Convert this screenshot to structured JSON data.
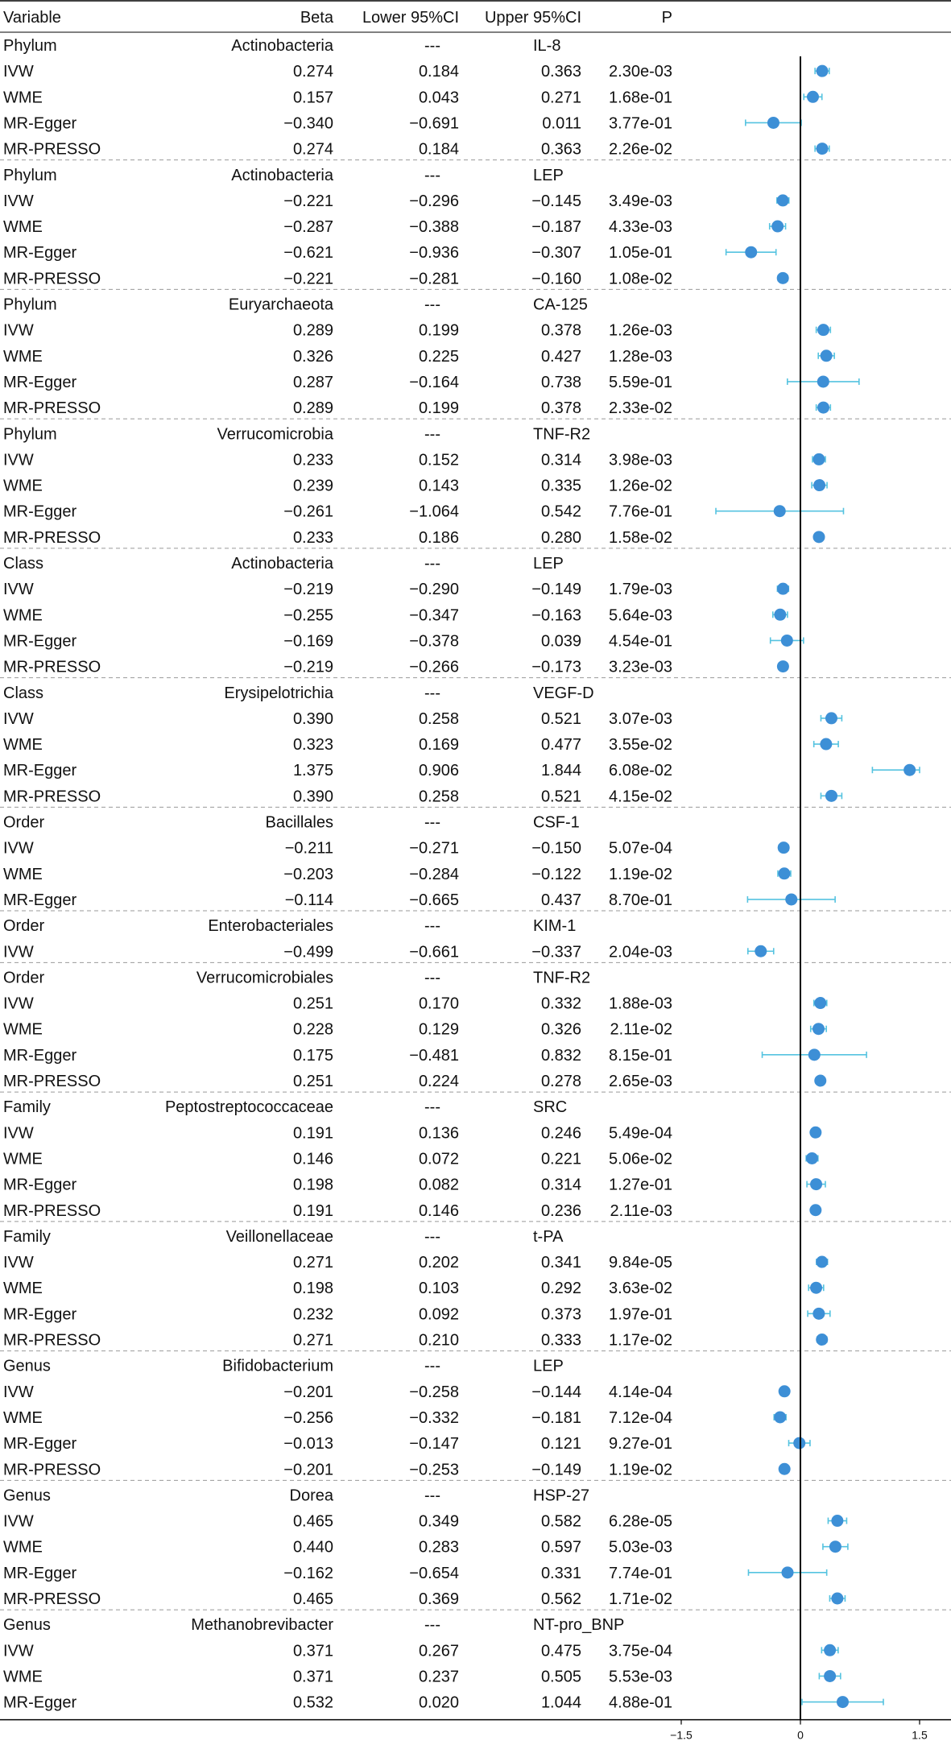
{
  "header": {
    "variable": "Variable",
    "beta": "Beta",
    "lower": "Lower 95%CI",
    "upper": "Upper 95%CI",
    "p": "P"
  },
  "group_dash": "---",
  "colors": {
    "point": "#3d8fd6",
    "whisker": "#55c3e0",
    "axis": "#000000",
    "separator": "#999999"
  },
  "chart_data": {
    "type": "forest",
    "title": "",
    "xlim": [
      -1.5,
      1.5
    ],
    "xticks": [
      -1.5,
      0,
      1.5
    ],
    "xtick_labels": [
      "-1.5",
      "0",
      "1.5"
    ],
    "reference_line": 0,
    "groups": [
      {
        "level": "Phylum",
        "taxon": "Actinobacteria",
        "outcome": "IL-8",
        "rows": [
          {
            "method": "IVW",
            "beta": "0.274",
            "lower": "0.184",
            "upper": "0.363",
            "p": "2.30e-03"
          },
          {
            "method": "WME",
            "beta": "0.157",
            "lower": "0.043",
            "upper": "0.271",
            "p": "1.68e-01"
          },
          {
            "method": "MR-Egger",
            "beta": "-0.340",
            "lower": "-0.691",
            "upper": "0.011",
            "p": "3.77e-01"
          },
          {
            "method": "MR-PRESSO",
            "beta": "0.274",
            "lower": "0.184",
            "upper": "0.363",
            "p": "2.26e-02"
          }
        ]
      },
      {
        "level": "Phylum",
        "taxon": "Actinobacteria",
        "outcome": "LEP",
        "rows": [
          {
            "method": "IVW",
            "beta": "-0.221",
            "lower": "-0.296",
            "upper": "-0.145",
            "p": "3.49e-03"
          },
          {
            "method": "WME",
            "beta": "-0.287",
            "lower": "-0.388",
            "upper": "-0.187",
            "p": "4.33e-03"
          },
          {
            "method": "MR-Egger",
            "beta": "-0.621",
            "lower": "-0.936",
            "upper": "-0.307",
            "p": "1.05e-01"
          },
          {
            "method": "MR-PRESSO",
            "beta": "-0.221",
            "lower": "-0.281",
            "upper": "-0.160",
            "p": "1.08e-02"
          }
        ]
      },
      {
        "level": "Phylum",
        "taxon": "Euryarchaeota",
        "outcome": "CA-125",
        "rows": [
          {
            "method": "IVW",
            "beta": "0.289",
            "lower": "0.199",
            "upper": "0.378",
            "p": "1.26e-03"
          },
          {
            "method": "WME",
            "beta": "0.326",
            "lower": "0.225",
            "upper": "0.427",
            "p": "1.28e-03"
          },
          {
            "method": "MR-Egger",
            "beta": "0.287",
            "lower": "-0.164",
            "upper": "0.738",
            "p": "5.59e-01"
          },
          {
            "method": "MR-PRESSO",
            "beta": "0.289",
            "lower": "0.199",
            "upper": "0.378",
            "p": "2.33e-02"
          }
        ]
      },
      {
        "level": "Phylum",
        "taxon": "Verrucomicrobia",
        "outcome": "TNF-R2",
        "rows": [
          {
            "method": "IVW",
            "beta": "0.233",
            "lower": "0.152",
            "upper": "0.314",
            "p": "3.98e-03"
          },
          {
            "method": "WME",
            "beta": "0.239",
            "lower": "0.143",
            "upper": "0.335",
            "p": "1.26e-02"
          },
          {
            "method": "MR-Egger",
            "beta": "-0.261",
            "lower": "-1.064",
            "upper": "0.542",
            "p": "7.76e-01"
          },
          {
            "method": "MR-PRESSO",
            "beta": "0.233",
            "lower": "0.186",
            "upper": "0.280",
            "p": "1.58e-02"
          }
        ]
      },
      {
        "level": "Class",
        "taxon": "Actinobacteria",
        "outcome": "LEP",
        "rows": [
          {
            "method": "IVW",
            "beta": "-0.219",
            "lower": "-0.290",
            "upper": "-0.149",
            "p": "1.79e-03"
          },
          {
            "method": "WME",
            "beta": "-0.255",
            "lower": "-0.347",
            "upper": "-0.163",
            "p": "5.64e-03"
          },
          {
            "method": "MR-Egger",
            "beta": "-0.169",
            "lower": "-0.378",
            "upper": "0.039",
            "p": "4.54e-01"
          },
          {
            "method": "MR-PRESSO",
            "beta": "-0.219",
            "lower": "-0.266",
            "upper": "-0.173",
            "p": "3.23e-03"
          }
        ]
      },
      {
        "level": "Class",
        "taxon": "Erysipelotrichia",
        "outcome": "VEGF-D",
        "rows": [
          {
            "method": "IVW",
            "beta": "0.390",
            "lower": "0.258",
            "upper": "0.521",
            "p": "3.07e-03"
          },
          {
            "method": "WME",
            "beta": "0.323",
            "lower": "0.169",
            "upper": "0.477",
            "p": "3.55e-02"
          },
          {
            "method": "MR-Egger",
            "beta": "1.375",
            "lower": "0.906",
            "upper": "1.844",
            "p": "6.08e-02"
          },
          {
            "method": "MR-PRESSO",
            "beta": "0.390",
            "lower": "0.258",
            "upper": "0.521",
            "p": "4.15e-02"
          }
        ]
      },
      {
        "level": "Order",
        "taxon": "Bacillales",
        "outcome": "CSF-1",
        "rows": [
          {
            "method": "IVW",
            "beta": "-0.211",
            "lower": "-0.271",
            "upper": "-0.150",
            "p": "5.07e-04"
          },
          {
            "method": "WME",
            "beta": "-0.203",
            "lower": "-0.284",
            "upper": "-0.122",
            "p": "1.19e-02"
          },
          {
            "method": "MR-Egger",
            "beta": "-0.114",
            "lower": "-0.665",
            "upper": "0.437",
            "p": "8.70e-01"
          }
        ]
      },
      {
        "level": "Order",
        "taxon": "Enterobacteriales",
        "outcome": "KIM-1",
        "rows": [
          {
            "method": "IVW",
            "beta": "-0.499",
            "lower": "-0.661",
            "upper": "-0.337",
            "p": "2.04e-03"
          }
        ]
      },
      {
        "level": "Order",
        "taxon": "Verrucomicrobiales",
        "outcome": "TNF-R2",
        "rows": [
          {
            "method": "IVW",
            "beta": "0.251",
            "lower": "0.170",
            "upper": "0.332",
            "p": "1.88e-03"
          },
          {
            "method": "WME",
            "beta": "0.228",
            "lower": "0.129",
            "upper": "0.326",
            "p": "2.11e-02"
          },
          {
            "method": "MR-Egger",
            "beta": "0.175",
            "lower": "-0.481",
            "upper": "0.832",
            "p": "8.15e-01"
          },
          {
            "method": "MR-PRESSO",
            "beta": "0.251",
            "lower": "0.224",
            "upper": "0.278",
            "p": "2.65e-03"
          }
        ]
      },
      {
        "level": "Family",
        "taxon": "Peptostreptococcaceae",
        "outcome": "SRC",
        "rows": [
          {
            "method": "IVW",
            "beta": "0.191",
            "lower": "0.136",
            "upper": "0.246",
            "p": "5.49e-04"
          },
          {
            "method": "WME",
            "beta": "0.146",
            "lower": "0.072",
            "upper": "0.221",
            "p": "5.06e-02"
          },
          {
            "method": "MR-Egger",
            "beta": "0.198",
            "lower": "0.082",
            "upper": "0.314",
            "p": "1.27e-01"
          },
          {
            "method": "MR-PRESSO",
            "beta": "0.191",
            "lower": "0.146",
            "upper": "0.236",
            "p": "2.11e-03"
          }
        ]
      },
      {
        "level": "Family",
        "taxon": "Veillonellaceae",
        "outcome": "t-PA",
        "rows": [
          {
            "method": "IVW",
            "beta": "0.271",
            "lower": "0.202",
            "upper": "0.341",
            "p": "9.84e-05"
          },
          {
            "method": "WME",
            "beta": "0.198",
            "lower": "0.103",
            "upper": "0.292",
            "p": "3.63e-02"
          },
          {
            "method": "MR-Egger",
            "beta": "0.232",
            "lower": "0.092",
            "upper": "0.373",
            "p": "1.97e-01"
          },
          {
            "method": "MR-PRESSO",
            "beta": "0.271",
            "lower": "0.210",
            "upper": "0.333",
            "p": "1.17e-02"
          }
        ]
      },
      {
        "level": "Genus",
        "taxon": "Bifidobacterium",
        "outcome": "LEP",
        "rows": [
          {
            "method": "IVW",
            "beta": "-0.201",
            "lower": "-0.258",
            "upper": "-0.144",
            "p": "4.14e-04"
          },
          {
            "method": "WME",
            "beta": "-0.256",
            "lower": "-0.332",
            "upper": "-0.181",
            "p": "7.12e-04"
          },
          {
            "method": "MR-Egger",
            "beta": "-0.013",
            "lower": "-0.147",
            "upper": "0.121",
            "p": "9.27e-01"
          },
          {
            "method": "MR-PRESSO",
            "beta": "-0.201",
            "lower": "-0.253",
            "upper": "-0.149",
            "p": "1.19e-02"
          }
        ]
      },
      {
        "level": "Genus",
        "taxon": "Dorea",
        "outcome": "HSP-27",
        "rows": [
          {
            "method": "IVW",
            "beta": "0.465",
            "lower": "0.349",
            "upper": "0.582",
            "p": "6.28e-05"
          },
          {
            "method": "WME",
            "beta": "0.440",
            "lower": "0.283",
            "upper": "0.597",
            "p": "5.03e-03"
          },
          {
            "method": "MR-Egger",
            "beta": "-0.162",
            "lower": "-0.654",
            "upper": "0.331",
            "p": "7.74e-01"
          },
          {
            "method": "MR-PRESSO",
            "beta": "0.465",
            "lower": "0.369",
            "upper": "0.562",
            "p": "1.71e-02"
          }
        ]
      },
      {
        "level": "Genus",
        "taxon": "Methanobrevibacter",
        "outcome": "NT-pro_BNP",
        "rows": [
          {
            "method": "IVW",
            "beta": "0.371",
            "lower": "0.267",
            "upper": "0.475",
            "p": "3.75e-04"
          },
          {
            "method": "WME",
            "beta": "0.371",
            "lower": "0.237",
            "upper": "0.505",
            "p": "5.53e-03"
          },
          {
            "method": "MR-Egger",
            "beta": "0.532",
            "lower": "0.020",
            "upper": "1.044",
            "p": "4.88e-01"
          }
        ]
      }
    ]
  }
}
